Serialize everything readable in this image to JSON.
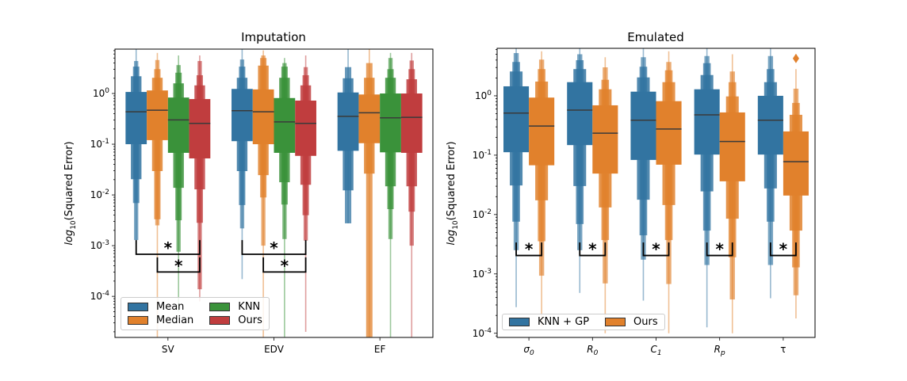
{
  "colors": {
    "Mean": "#3274a1",
    "Median": "#e1812c",
    "KNN": "#3a923a",
    "Ours": "#c03d3e",
    "KNN + GP": "#3274a1",
    "Ours2": "#e1812c",
    "median_line": "#3a3a3a",
    "bracket": "#000000"
  },
  "chart_data": [
    {
      "type": "boxen",
      "title": "Imputation",
      "ylabel": "log_10(Squared Error)",
      "yscale": "log",
      "ylim_log10": [
        -4.81,
        0.875
      ],
      "yticks_log10": [
        0,
        -1,
        -2,
        -3,
        -4
      ],
      "ytick_labels": [
        "10^0",
        "10^-1",
        "10^-2",
        "10^-3",
        "10^-4"
      ],
      "categories": [
        "SV",
        "EDV",
        "EF"
      ],
      "hues": [
        "Mean",
        "Median",
        "KNN",
        "Ours"
      ],
      "legend": {
        "placement": "lower-left",
        "columns": 2,
        "entries": [
          "Mean",
          "Median",
          "KNN",
          "Ours"
        ]
      },
      "boxes_log10": [
        [
          {
            "median": -0.36,
            "levels": [
              [
                -1.0,
                0.03
              ],
              [
                -1.69,
                0.34
              ],
              [
                -2.16,
                0.53
              ],
              [
                -2.89,
                0.64
              ]
            ],
            "range": [
              -2.97,
              0.9
            ]
          },
          {
            "median": -0.33,
            "levels": [
              [
                -0.92,
                0.06
              ],
              [
                -1.53,
                0.31
              ],
              [
                -2.48,
                0.48
              ],
              [
                -2.6,
                0.66
              ]
            ],
            "range": [
              -4.8,
              0.8
            ]
          },
          {
            "median": -0.52,
            "levels": [
              [
                -1.17,
                -0.08
              ],
              [
                -1.86,
                0.2
              ],
              [
                -2.5,
                0.41
              ],
              [
                -3.12,
                0.56
              ]
            ],
            "range": [
              -4.3,
              0.75
            ]
          },
          {
            "median": -0.59,
            "levels": [
              [
                -1.28,
                -0.11
              ],
              [
                -1.89,
                0.16
              ],
              [
                -2.55,
                0.36
              ],
              [
                -3.86,
                0.64
              ]
            ],
            "range": [
              -4.1,
              0.75
            ]
          }
        ],
        [
          {
            "median": -0.34,
            "levels": [
              [
                -0.94,
                0.09
              ],
              [
                -1.53,
                0.31
              ],
              [
                -2.2,
                0.53
              ],
              [
                -2.66,
                0.67
              ]
            ],
            "range": [
              -3.66,
              0.9
            ]
          },
          {
            "median": -0.36,
            "levels": [
              [
                -1.0,
                0.08
              ],
              [
                -1.61,
                0.55
              ],
              [
                -2.05,
                0.7
              ],
              [
                -3.0,
                0.75
              ]
            ],
            "range": [
              -4.8,
              0.85
            ]
          },
          {
            "median": -0.56,
            "levels": [
              [
                -1.17,
                -0.09
              ],
              [
                -1.75,
                0.31
              ],
              [
                -2.19,
                0.53
              ],
              [
                -2.87,
                0.6
              ]
            ],
            "range": [
              -4.8,
              0.7
            ]
          },
          {
            "median": -0.59,
            "levels": [
              [
                -1.23,
                -0.14
              ],
              [
                -1.8,
                0.16
              ],
              [
                -2.4,
                0.36
              ],
              [
                -2.9,
                0.52
              ]
            ],
            "range": [
              -4.7,
              0.75
            ]
          }
        ],
        [
          {
            "median": -0.45,
            "levels": [
              [
                -1.13,
                0.02
              ],
              [
                -1.91,
                0.3
              ],
              [
                -2.56,
                0.52
              ]
            ],
            "range": [
              -2.56,
              0.9
            ]
          },
          {
            "median": -0.38,
            "levels": [
              [
                -0.98,
                -0.02
              ],
              [
                -1.58,
                0.31
              ],
              [
                -4.8,
                0.6
              ]
            ],
            "range": [
              -4.8,
              0.9
            ]
          },
          {
            "median": -0.48,
            "levels": [
              [
                -1.16,
                0.0
              ],
              [
                -1.83,
                0.31
              ],
              [
                -2.28,
                0.48
              ],
              [
                -2.87,
                0.7
              ]
            ],
            "range": [
              -4.8,
              0.8
            ]
          },
          {
            "median": -0.47,
            "levels": [
              [
                -1.17,
                0.0
              ],
              [
                -1.83,
                0.28
              ],
              [
                -2.33,
                0.48
              ],
              [
                -3.0,
                0.65
              ]
            ],
            "range": [
              -4.8,
              0.8
            ]
          }
        ]
      ],
      "annotations": [
        {
          "category": "SV",
          "from": "Mean",
          "to": "Ours",
          "label": "*"
        },
        {
          "category": "SV",
          "from": "Median",
          "to": "Ours",
          "label": "*"
        },
        {
          "category": "EDV",
          "from": "Mean",
          "to": "Ours",
          "label": "*"
        },
        {
          "category": "EDV",
          "from": "Median",
          "to": "Ours",
          "label": "*"
        }
      ]
    },
    {
      "type": "boxen",
      "title": "Emulated",
      "ylabel": "log_10(Squared Error)",
      "yscale": "log",
      "ylim_log10": [
        -4.07,
        0.8
      ],
      "yticks_log10": [
        0,
        -1,
        -2,
        -3,
        -4
      ],
      "ytick_labels": [
        "10^0",
        "10^-1",
        "10^-2",
        "10^-3",
        "10^-4"
      ],
      "categories": [
        "σ_0",
        "R_0",
        "C_1",
        "R_p",
        "τ"
      ],
      "hues": [
        "KNN + GP",
        "Ours"
      ],
      "legend": {
        "placement": "lower-left",
        "columns": 2,
        "entries": [
          "KNN + GP",
          "Ours"
        ]
      },
      "boxes_log10": [
        [
          {
            "median": -0.29,
            "levels": [
              [
                -0.95,
                0.16
              ],
              [
                -1.51,
                0.41
              ],
              [
                -2.12,
                0.57
              ],
              [
                -2.6,
                0.72
              ]
            ],
            "range": [
              -3.56,
              0.8
            ]
          },
          {
            "median": -0.51,
            "levels": [
              [
                -1.17,
                -0.03
              ],
              [
                -1.76,
                0.24
              ],
              [
                -2.45,
                0.45
              ],
              [
                -3.03,
                0.61
              ]
            ],
            "range": [
              -3.88,
              0.75
            ]
          }
        ],
        [
          {
            "median": -0.24,
            "levels": [
              [
                -0.83,
                0.23
              ],
              [
                -1.52,
                0.45
              ],
              [
                -2.16,
                0.6
              ],
              [
                -2.6,
                0.7
              ]
            ],
            "range": [
              -3.32,
              0.8
            ]
          },
          {
            "median": -0.63,
            "levels": [
              [
                -1.31,
                -0.16
              ],
              [
                -1.88,
                0.11
              ],
              [
                -2.43,
                0.27
              ],
              [
                -3.16,
                0.48
              ]
            ],
            "range": [
              -4.0,
              0.65
            ]
          }
        ],
        [
          {
            "median": -0.41,
            "levels": [
              [
                -1.08,
                0.07
              ],
              [
                -1.75,
                0.31
              ],
              [
                -2.35,
                0.49
              ],
              [
                -2.76,
                0.65
              ]
            ],
            "range": [
              -3.45,
              0.8
            ]
          },
          {
            "median": -0.56,
            "levels": [
              [
                -1.16,
                -0.09
              ],
              [
                -1.84,
                0.23
              ],
              [
                -2.43,
                0.43
              ],
              [
                -3.17,
                0.57
              ]
            ],
            "range": [
              -4.0,
              0.75
            ]
          }
        ],
        [
          {
            "median": -0.32,
            "levels": [
              [
                -0.99,
                0.11
              ],
              [
                -1.61,
                0.35
              ],
              [
                -2.27,
                0.55
              ],
              [
                -2.85,
                0.67
              ]
            ],
            "range": [
              -3.9,
              0.8
            ]
          },
          {
            "median": -0.77,
            "levels": [
              [
                -1.44,
                -0.28
              ],
              [
                -2.07,
                -0.01
              ],
              [
                -2.72,
                0.23
              ],
              [
                -3.43,
                0.41
              ]
            ],
            "range": [
              -4.0,
              0.7
            ]
          }
        ],
        [
          {
            "median": -0.41,
            "levels": [
              [
                -0.99,
                0.0
              ],
              [
                -1.56,
                0.23
              ],
              [
                -2.12,
                0.45
              ],
              [
                -2.85,
                0.67
              ]
            ],
            "range": [
              -3.41,
              0.8
            ]
          },
          {
            "median": -1.11,
            "levels": [
              [
                -1.68,
                -0.6
              ],
              [
                -2.27,
                -0.32
              ],
              [
                -2.89,
                -0.12
              ],
              [
                -3.36,
                0.12
              ]
            ],
            "range": [
              -3.75,
              0.45
            ],
            "outliers": [
              0.63
            ]
          }
        ]
      ],
      "annotations": [
        {
          "category": "σ_0",
          "from": "KNN + GP",
          "to": "Ours",
          "label": "*"
        },
        {
          "category": "R_0",
          "from": "KNN + GP",
          "to": "Ours",
          "label": "*"
        },
        {
          "category": "C_1",
          "from": "KNN + GP",
          "to": "Ours",
          "label": "*"
        },
        {
          "category": "R_p",
          "from": "KNN + GP",
          "to": "Ours",
          "label": "*"
        },
        {
          "category": "τ",
          "from": "KNN + GP",
          "to": "Ours",
          "label": "*"
        }
      ]
    }
  ]
}
